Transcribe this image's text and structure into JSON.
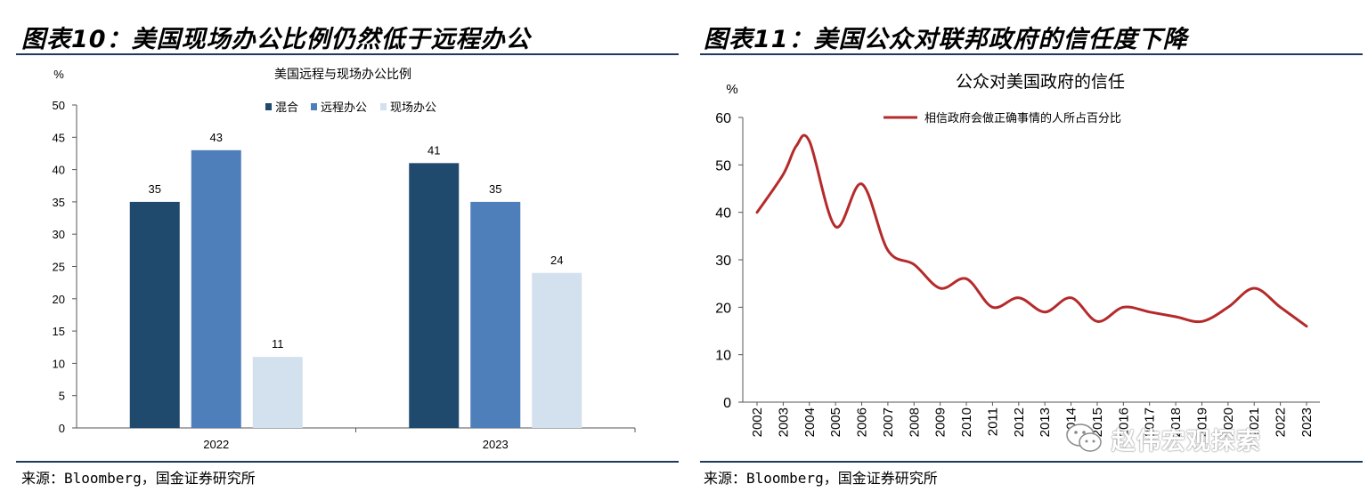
{
  "left": {
    "figure_title": "图表10：美国现场办公比例仍然低于远程办公",
    "source": "来源：Bloomberg，国金证券研究所"
  },
  "right": {
    "figure_title": "图表11：美国公众对联邦政府的信任度下降",
    "source": "来源：Bloomberg，国金证券研究所"
  },
  "watermark": "赵伟宏观探索",
  "chart_data": [
    {
      "type": "bar",
      "title": "美国远程与现场办公比例",
      "ylabel": "%",
      "ylim": [
        0,
        50
      ],
      "yticks": [
        0,
        5,
        10,
        15,
        20,
        25,
        30,
        35,
        40,
        45,
        50
      ],
      "grid": false,
      "legend_position": "top-right",
      "categories": [
        "2022",
        "2023"
      ],
      "series": [
        {
          "name": "混合",
          "color": "#1f4a6e",
          "values": [
            35,
            41
          ]
        },
        {
          "name": "远程办公",
          "color": "#4f7fba",
          "values": [
            43,
            35
          ]
        },
        {
          "name": "现场办公",
          "color": "#d3e1ef",
          "values": [
            11,
            24
          ]
        }
      ]
    },
    {
      "type": "line",
      "title": "公众对美国政府的信任",
      "ylabel": "%",
      "ylim": [
        0,
        60
      ],
      "yticks": [
        0,
        10,
        20,
        30,
        40,
        50,
        60
      ],
      "grid": false,
      "legend_position": "top",
      "x_labels": [
        "2002",
        "2003",
        "2004",
        "2005",
        "2006",
        "2007",
        "2008",
        "2009",
        "2010",
        "2011",
        "2012",
        "2013",
        "2014",
        "2015",
        "2016",
        "2017",
        "2018",
        "2019",
        "2020",
        "2021",
        "2022",
        "2023"
      ],
      "series": [
        {
          "name": "相信政府会做正确事情的人所占百分比",
          "color": "#b52a2a",
          "x": [
            2002,
            2003,
            2003.5,
            2004,
            2005,
            2006,
            2007,
            2008,
            2009,
            2010,
            2011,
            2012,
            2013,
            2014,
            2015,
            2016,
            2017,
            2018,
            2019,
            2020,
            2021,
            2022,
            2023
          ],
          "y": [
            40,
            48,
            54,
            55,
            37,
            46,
            32,
            29,
            24,
            26,
            20,
            22,
            19,
            22,
            17,
            20,
            19,
            18,
            17,
            20,
            24,
            20,
            16
          ]
        }
      ]
    }
  ]
}
